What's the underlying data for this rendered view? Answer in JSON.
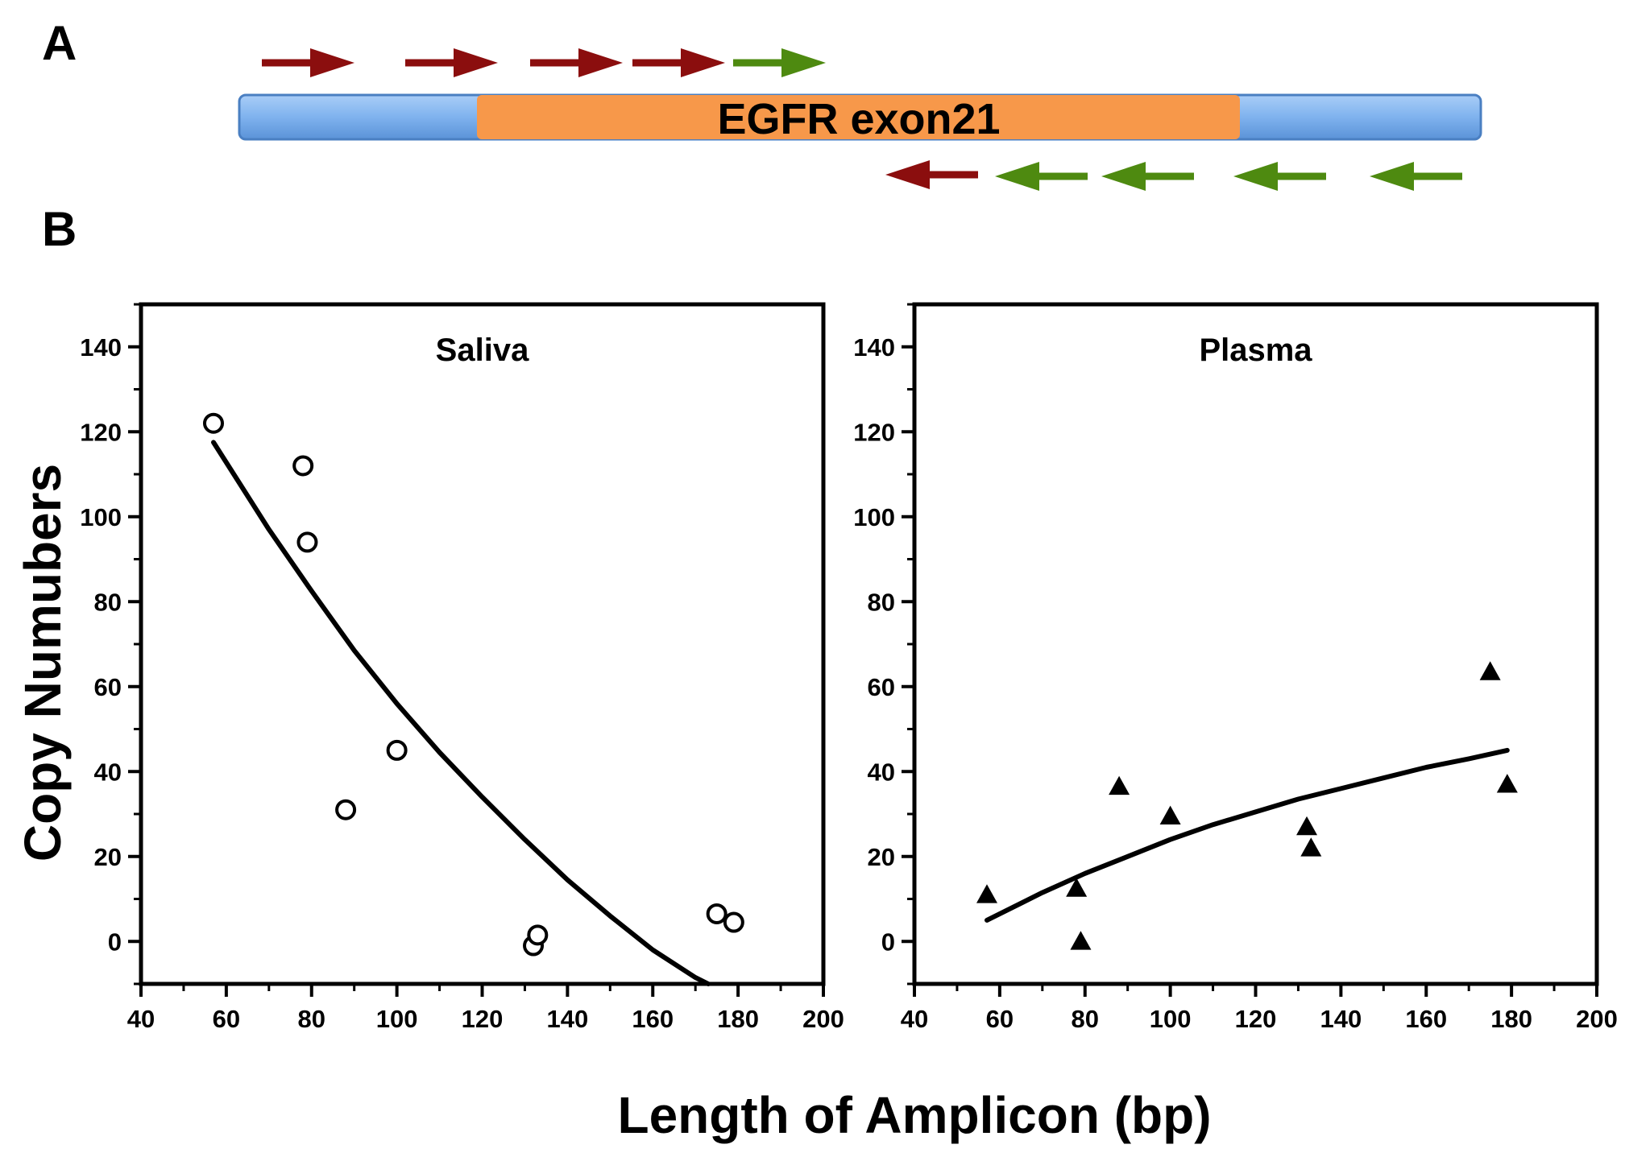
{
  "figure": {
    "panel_a_label": "A",
    "panel_b_label": "B",
    "gene_label": "EGFR exon21",
    "shared_ylabel": "Copy Numubers",
    "shared_xlabel": "Length of Amplicon (bp)",
    "colors": {
      "flank": "#7fb2ee",
      "exon": "#f7984a",
      "forward_arrow_dark": "#8b0e0e",
      "arrow_green": "#4e8a10"
    },
    "forward_primers": [
      "dark-red",
      "dark-red",
      "dark-red",
      "dark-red",
      "green"
    ],
    "reverse_primers": [
      "dark-red",
      "green",
      "green",
      "green",
      "green"
    ]
  },
  "chart_data": [
    {
      "type": "scatter",
      "title": "Saliva",
      "xlabel": "Length of Amplicon (bp)",
      "ylabel": "Copy Numubers",
      "xlim": [
        40,
        200
      ],
      "ylim": [
        -10,
        150
      ],
      "xticks": [
        40,
        60,
        80,
        100,
        120,
        140,
        160,
        180,
        200
      ],
      "yticks": [
        0,
        20,
        40,
        60,
        80,
        100,
        120,
        140
      ],
      "marker": "open-circle",
      "points": [
        {
          "x": 57,
          "y": 122
        },
        {
          "x": 78,
          "y": 112
        },
        {
          "x": 79,
          "y": 94
        },
        {
          "x": 88,
          "y": 31
        },
        {
          "x": 100,
          "y": 45
        },
        {
          "x": 132,
          "y": -1
        },
        {
          "x": 133,
          "y": 1.5
        },
        {
          "x": 175,
          "y": 6.5
        },
        {
          "x": 179,
          "y": 4.5
        }
      ],
      "fit_curve": {
        "x": [
          57,
          70,
          80,
          90,
          100,
          110,
          120,
          130,
          140,
          150,
          160,
          170,
          173
        ],
        "y": [
          117.5,
          97,
          82.5,
          68.5,
          56,
          44.5,
          34,
          24,
          14.5,
          6,
          -2,
          -8.5,
          -10
        ]
      }
    },
    {
      "type": "scatter",
      "title": "Plasma",
      "xlabel": "Length of Amplicon (bp)",
      "ylabel": "Copy Numubers",
      "xlim": [
        40,
        200
      ],
      "ylim": [
        -10,
        150
      ],
      "xticks": [
        40,
        60,
        80,
        100,
        120,
        140,
        160,
        180,
        200
      ],
      "yticks": [
        0,
        20,
        40,
        60,
        80,
        100,
        120,
        140
      ],
      "marker": "filled-triangle",
      "points": [
        {
          "x": 57,
          "y": 11
        },
        {
          "x": 78,
          "y": 12.5
        },
        {
          "x": 79,
          "y": 0
        },
        {
          "x": 88,
          "y": 36.5
        },
        {
          "x": 100,
          "y": 29.5
        },
        {
          "x": 132,
          "y": 27
        },
        {
          "x": 133,
          "y": 22
        },
        {
          "x": 175,
          "y": 63.5
        },
        {
          "x": 179,
          "y": 37
        }
      ],
      "fit_curve": {
        "x": [
          57,
          70,
          80,
          90,
          100,
          110,
          120,
          130,
          140,
          150,
          160,
          170,
          179
        ],
        "y": [
          5,
          11.5,
          16,
          20,
          24,
          27.5,
          30.5,
          33.5,
          36,
          38.5,
          41,
          43,
          45
        ]
      }
    }
  ]
}
